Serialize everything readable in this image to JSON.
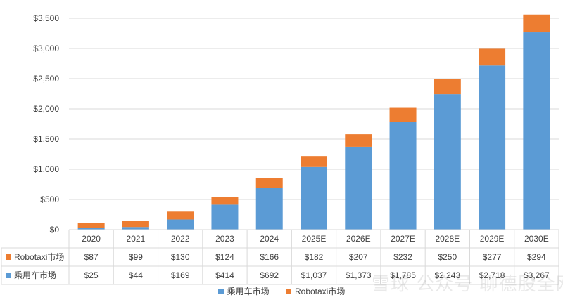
{
  "chart_data": {
    "type": "bar",
    "stacked": true,
    "categories": [
      "2020",
      "2021",
      "2022",
      "2023",
      "2024",
      "2025E",
      "2026E",
      "2027E",
      "2028E",
      "2029E",
      "2030E"
    ],
    "series": [
      {
        "name": "乘用车市场",
        "color": "#5b9bd5",
        "values": [
          25,
          44,
          169,
          414,
          692,
          1037,
          1373,
          1785,
          2243,
          2718,
          3267
        ],
        "labels": [
          "$25",
          "$44",
          "$169",
          "$414",
          "$692",
          "$1,037",
          "$1,373",
          "$1,785",
          "$2,243",
          "$2,718",
          "$3,267"
        ]
      },
      {
        "name": "Robotaxi市场",
        "color": "#ed7d31",
        "values": [
          87,
          99,
          130,
          124,
          166,
          182,
          207,
          232,
          250,
          277,
          294
        ],
        "labels": [
          "$87",
          "$99",
          "$130",
          "$124",
          "$166",
          "$182",
          "$207",
          "$232",
          "$250",
          "$277",
          "$294"
        ]
      }
    ],
    "ylim": [
      0,
      3500
    ],
    "yticks": [
      "$0",
      "$500",
      "$1,000",
      "$1,500",
      "$2,000",
      "$2,500",
      "$3,000",
      "$3,500"
    ],
    "grid": true,
    "data_table": true,
    "legend_position": "bottom"
  },
  "watermark": "雪球 公众号 聊德股全网"
}
